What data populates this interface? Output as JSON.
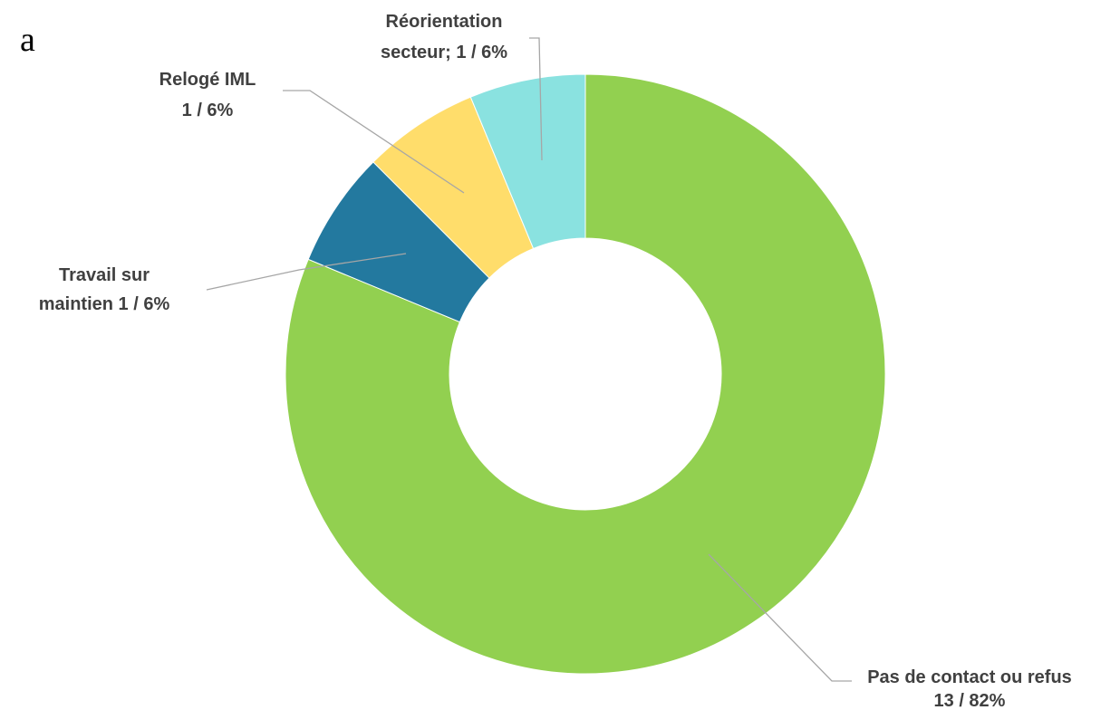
{
  "fragment": "a",
  "chart_data": {
    "type": "donut",
    "labels": [
      [
        "Pas de contact ou refus",
        "13 / 82%"
      ],
      [
        "Travail sur",
        "maintien 1 / 6%"
      ],
      [
        "Relogé IML",
        "1 / 6%"
      ],
      [
        "Réorientation",
        "secteur; 1 / 6%"
      ]
    ],
    "values": [
      13,
      1,
      1,
      1
    ],
    "colors": [
      "#92d050",
      "#23799f",
      "#ffdd6b",
      "#8ae2e0"
    ]
  }
}
